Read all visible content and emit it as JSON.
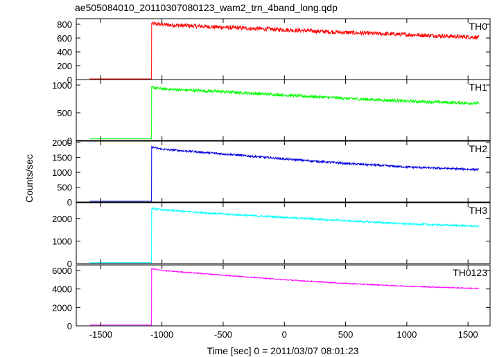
{
  "title": "ae505084010_20110307080123_wam2_trn_4band_long.qdp",
  "ylabel": "Counts/sec",
  "xlabel": "Time [sec] 0 = 2011/03/07 08:01:23",
  "chart_data": [
    {
      "type": "line",
      "name": "TH0",
      "color": "#ff0000",
      "x": [
        -1590,
        -1085,
        -1084,
        -1000,
        -500,
        0,
        500,
        1000,
        1590
      ],
      "y": [
        10,
        10,
        810,
        795,
        755,
        720,
        680,
        650,
        610
      ],
      "ylim": [
        0,
        880
      ],
      "yticks": [
        0,
        200,
        400,
        600,
        800
      ],
      "noise": 60
    },
    {
      "type": "line",
      "name": "TH1",
      "color": "#00ff00",
      "x": [
        -1590,
        -1085,
        -1084,
        -1000,
        -500,
        0,
        500,
        1000,
        1590
      ],
      "y": [
        30,
        30,
        960,
        930,
        880,
        820,
        760,
        710,
        670
      ],
      "ylim": [
        0,
        1100
      ],
      "yticks": [
        0,
        500,
        1000
      ],
      "noise": 55
    },
    {
      "type": "line",
      "name": "TH2",
      "color": "#0000dd",
      "x": [
        -1590,
        -1085,
        -1084,
        -1000,
        -500,
        0,
        500,
        1000,
        1590
      ],
      "y": [
        30,
        30,
        1850,
        1780,
        1620,
        1450,
        1300,
        1180,
        1090
      ],
      "ylim": [
        0,
        2050
      ],
      "yticks": [
        0,
        500,
        1000,
        1500,
        2000
      ],
      "noise": 70
    },
    {
      "type": "line",
      "name": "TH3",
      "color": "#00ffff",
      "x": [
        -1590,
        -1085,
        -1084,
        -1000,
        -500,
        0,
        500,
        1000,
        1590
      ],
      "y": [
        40,
        40,
        2450,
        2380,
        2200,
        2050,
        1900,
        1760,
        1660
      ],
      "ylim": [
        0,
        2700
      ],
      "yticks": [
        0,
        1000,
        2000
      ],
      "noise": 80
    },
    {
      "type": "line",
      "name": "TH0123",
      "color": "#ff00ff",
      "x": [
        -1590,
        -1085,
        -1084,
        -1000,
        -500,
        0,
        500,
        1000,
        1590
      ],
      "y": [
        100,
        100,
        6200,
        6000,
        5500,
        5000,
        4600,
        4300,
        4050
      ],
      "ylim": [
        0,
        6600
      ],
      "yticks": [
        0,
        2000,
        4000,
        6000
      ],
      "noise": 110
    }
  ],
  "xaxis": {
    "xlim": [
      -1700,
      1680
    ],
    "xticks": [
      -1500,
      -1000,
      -500,
      0,
      500,
      1000,
      1500
    ]
  }
}
